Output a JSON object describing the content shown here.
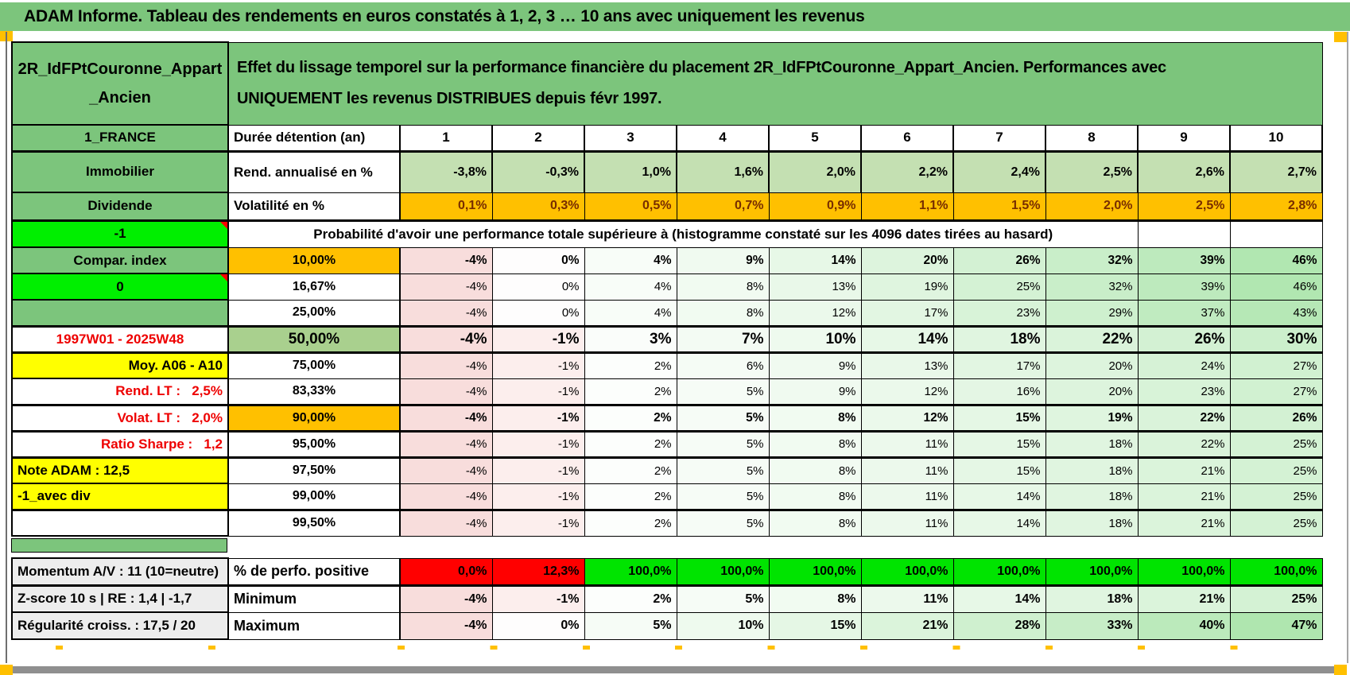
{
  "title": "ADAM Informe. Tableau des rendements en euros constatés à 1, 2, 3 … 10 ans avec uniquement les revenus",
  "colors": {
    "header_green": "#7CC57C",
    "bright_green": "#00EF00",
    "sage_green_50pct": "#A9D08E",
    "light_green_return_row": "#C4E0B2",
    "orange": "#FFC000",
    "yellow": "#FFFF00",
    "red": "#FF0000",
    "perfo_green": "#00E400",
    "label_gray": "#EDEDED",
    "negative_pink": "#F8DDDC",
    "positive_green_max": "#AFE6AF"
  },
  "sheet": {
    "asset_label": "2R_IdFPtCouronne_Appart\n_Ancien",
    "description": "Effet du lissage temporel sur la performance financière du placement 2R_IdFPtCouronne_Appart_Ancien. Performances avec\nUNIQUEMENT les revenus DISTRIBUES depuis févr 1997.",
    "left_labels": {
      "country": "1_FRANCE",
      "asset_class": "Immobilier",
      "income_type": "Dividende",
      "flag_minus1": "-1",
      "compar_index": "Compar. index",
      "flag_zero": "0",
      "period": "1997W01 - 2025W48",
      "moy": "Moy. A06 - A10",
      "rend_lt": "Rend. LT :   2,5%",
      "volat_lt": "Volat. LT :   2,0%",
      "ratio_sharpe": "Ratio Sharpe :   1,2",
      "note_adam": "Note ADAM : 12,5",
      "avec_div": "-1_avec div",
      "momentum": "Momentum A/V : 11 (10=neutre)",
      "zscore": "Z-score 10 s | RE : 1,4 | -1,7",
      "regularite": "Régularité croiss. : 17,5 / 20"
    },
    "duree": {
      "header": "Durée détention (an)",
      "columns": [
        "1",
        "2",
        "3",
        "4",
        "5",
        "6",
        "7",
        "8",
        "9",
        "10"
      ]
    },
    "rend": {
      "header": "Rend. annualisé en %",
      "values": [
        "-3,8%",
        "-0,3%",
        "1,0%",
        "1,6%",
        "2,0%",
        "2,2%",
        "2,4%",
        "2,5%",
        "2,6%",
        "2,7%"
      ]
    },
    "volat": {
      "header": "Volatilité en %",
      "values": [
        "0,1%",
        "0,3%",
        "0,5%",
        "0,7%",
        "0,9%",
        "1,1%",
        "1,5%",
        "2,0%",
        "2,5%",
        "2,8%"
      ]
    },
    "prob_title": "Probabilité d'avoir une performance totale supérieure à (histogramme constaté sur les 4096 dates tirées au hasard)",
    "prob_rows": [
      {
        "pct": "10,00%",
        "values": [
          "-4%",
          "0%",
          "4%",
          "9%",
          "14%",
          "20%",
          "26%",
          "32%",
          "39%",
          "46%"
        ]
      },
      {
        "pct": "16,67%",
        "values": [
          "-4%",
          "0%",
          "4%",
          "8%",
          "13%",
          "19%",
          "25%",
          "32%",
          "39%",
          "46%"
        ]
      },
      {
        "pct": "25,00%",
        "values": [
          "-4%",
          "0%",
          "4%",
          "8%",
          "12%",
          "17%",
          "23%",
          "29%",
          "37%",
          "43%"
        ]
      },
      {
        "pct": "50,00%",
        "values": [
          "-4%",
          "-1%",
          "3%",
          "7%",
          "10%",
          "14%",
          "18%",
          "22%",
          "26%",
          "30%"
        ]
      },
      {
        "pct": "75,00%",
        "values": [
          "-4%",
          "-1%",
          "2%",
          "6%",
          "9%",
          "13%",
          "17%",
          "20%",
          "24%",
          "27%"
        ]
      },
      {
        "pct": "83,33%",
        "values": [
          "-4%",
          "-1%",
          "2%",
          "5%",
          "9%",
          "12%",
          "16%",
          "20%",
          "23%",
          "27%"
        ]
      },
      {
        "pct": "90,00%",
        "values": [
          "-4%",
          "-1%",
          "2%",
          "5%",
          "8%",
          "12%",
          "15%",
          "19%",
          "22%",
          "26%"
        ]
      },
      {
        "pct": "95,00%",
        "values": [
          "-4%",
          "-1%",
          "2%",
          "5%",
          "8%",
          "11%",
          "15%",
          "18%",
          "22%",
          "25%"
        ]
      },
      {
        "pct": "97,50%",
        "values": [
          "-4%",
          "-1%",
          "2%",
          "5%",
          "8%",
          "11%",
          "15%",
          "18%",
          "21%",
          "25%"
        ]
      },
      {
        "pct": "99,00%",
        "values": [
          "-4%",
          "-1%",
          "2%",
          "5%",
          "8%",
          "11%",
          "14%",
          "18%",
          "21%",
          "25%"
        ]
      },
      {
        "pct": "99,50%",
        "values": [
          "-4%",
          "-1%",
          "2%",
          "5%",
          "8%",
          "11%",
          "14%",
          "18%",
          "21%",
          "25%"
        ]
      }
    ],
    "bottom_rows": [
      {
        "header": "% de perfo. positive",
        "values": [
          "0,0%",
          "12,3%",
          "100,0%",
          "100,0%",
          "100,0%",
          "100,0%",
          "100,0%",
          "100,0%",
          "100,0%",
          "100,0%"
        ]
      },
      {
        "header": "Minimum",
        "values": [
          "-4%",
          "-1%",
          "2%",
          "5%",
          "8%",
          "11%",
          "14%",
          "18%",
          "21%",
          "25%"
        ]
      },
      {
        "header": "Maximum",
        "values": [
          "-4%",
          "0%",
          "5%",
          "10%",
          "15%",
          "21%",
          "28%",
          "33%",
          "40%",
          "47%"
        ]
      }
    ]
  }
}
